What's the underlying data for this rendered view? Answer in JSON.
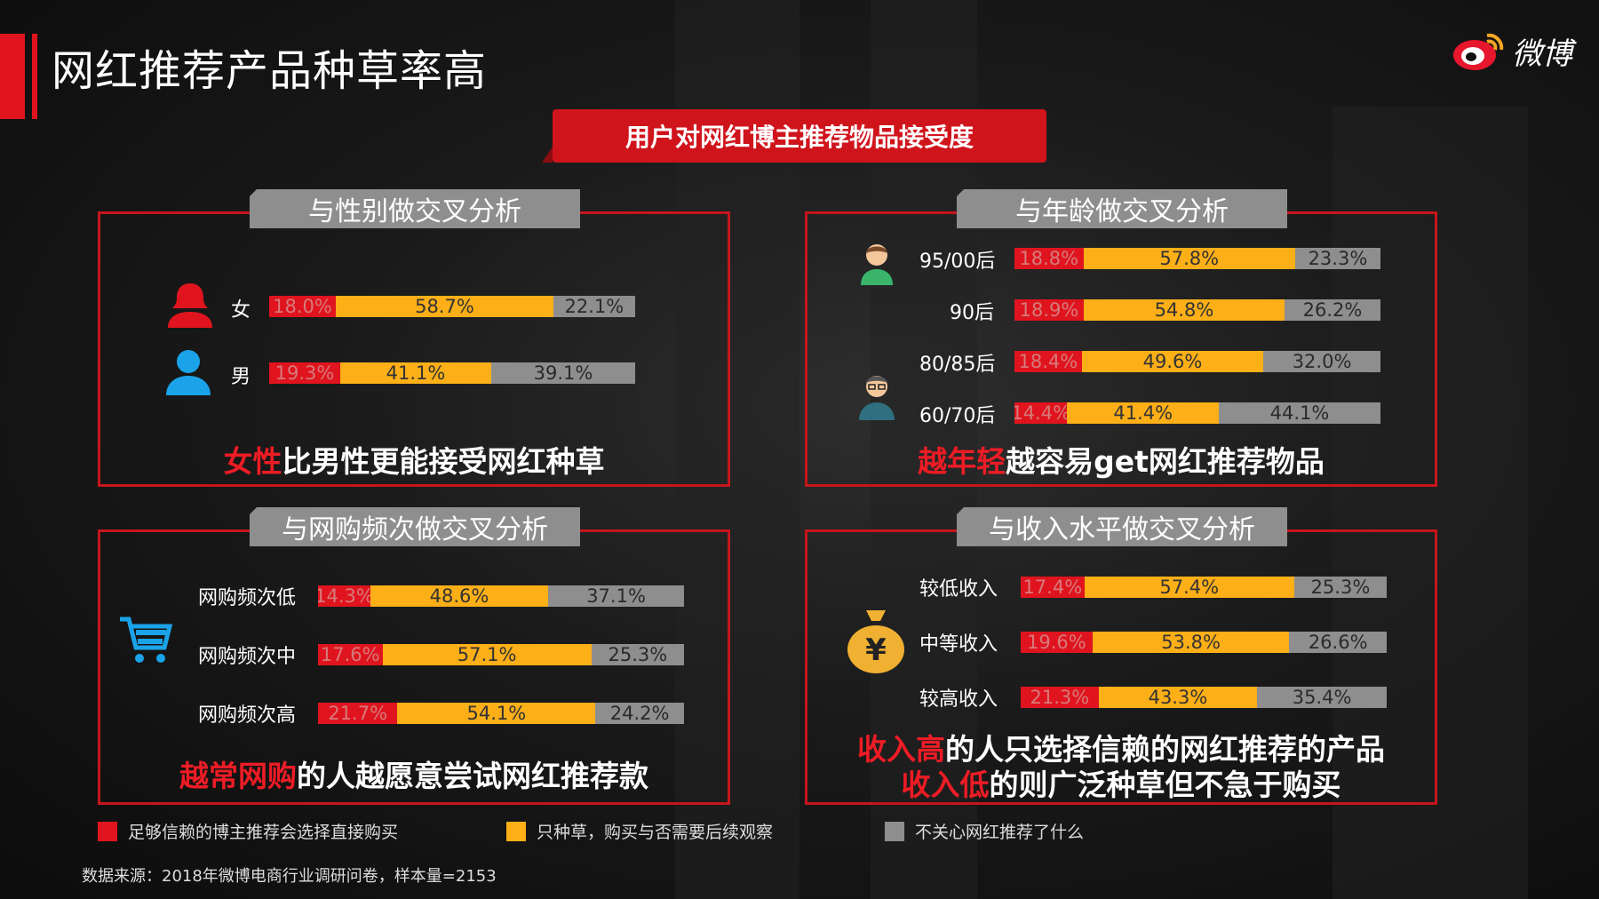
{
  "title": "网红推荐产品种草率高",
  "logo_text": "微博",
  "banner": "用户对网红博主推荐物品接受度",
  "colors": {
    "accept": "#e0141e",
    "seed": "#fcaf17",
    "ignore": "#8e8e8e",
    "frame": "#c5161c"
  },
  "panels": {
    "gender": {
      "tab": "与性别做交叉分析",
      "conclusion_hl": "女性",
      "conclusion_rest": "比男性更能接受网红种草"
    },
    "age": {
      "tab": "与年龄做交叉分析",
      "conclusion_hl": "越年轻",
      "conclusion_rest": "越容易get网红推荐物品"
    },
    "freq": {
      "tab": "与网购频次做交叉分析",
      "conclusion_hl": "越常网购",
      "conclusion_rest": "的人越愿意尝试网红推荐款"
    },
    "income": {
      "tab": "与收入水平做交叉分析",
      "conclusion1_hl": "收入高",
      "conclusion1_rest": "的人只选择信赖的网红推荐的产品",
      "conclusion2_hl": "收入低",
      "conclusion2_rest": "的则广泛种草但不急于购买"
    }
  },
  "legend": {
    "accept": "足够信赖的博主推荐会选择直接购买",
    "seed": "只种草，购买与否需要后续观察",
    "ignore": "不关心网红推荐了什么"
  },
  "source": "数据来源：2018年微博电商行业调研问卷，样本量=2153",
  "chart_data": [
    {
      "type": "bar",
      "stacked": true,
      "orientation": "horizontal",
      "title": "与性别做交叉分析",
      "categories": [
        "女",
        "男"
      ],
      "series": [
        {
          "name": "足够信赖的博主推荐会选择直接购买",
          "values": [
            18.0,
            19.3
          ],
          "labels": [
            "18.0%",
            "19.3%"
          ]
        },
        {
          "name": "只种草，购买与否需要后续观察",
          "values": [
            58.7,
            41.1
          ],
          "labels": [
            "58.7%",
            "41.1%"
          ]
        },
        {
          "name": "不关心网红推荐了什么",
          "values": [
            22.1,
            39.1
          ],
          "labels": [
            "22.1%",
            "39.1%"
          ]
        }
      ]
    },
    {
      "type": "bar",
      "stacked": true,
      "orientation": "horizontal",
      "title": "与年龄做交叉分析",
      "categories": [
        "95/00后",
        "90后",
        "80/85后",
        "60/70后"
      ],
      "series": [
        {
          "name": "足够信赖的博主推荐会选择直接购买",
          "values": [
            18.8,
            18.9,
            18.4,
            14.4
          ],
          "labels": [
            "18.8%",
            "18.9%",
            "18.4%",
            "14.4%"
          ]
        },
        {
          "name": "只种草，购买与否需要后续观察",
          "values": [
            57.8,
            54.8,
            49.6,
            41.4
          ],
          "labels": [
            "57.8%",
            "54.8%",
            "49.6%",
            "41.4%"
          ]
        },
        {
          "name": "不关心网红推荐了什么",
          "values": [
            23.3,
            26.2,
            32.0,
            44.1
          ],
          "labels": [
            "23.3%",
            "26.2%",
            "32.0%",
            "44.1%"
          ]
        }
      ]
    },
    {
      "type": "bar",
      "stacked": true,
      "orientation": "horizontal",
      "title": "与网购频次做交叉分析",
      "categories": [
        "网购频次低",
        "网购频次中",
        "网购频次高"
      ],
      "series": [
        {
          "name": "足够信赖的博主推荐会选择直接购买",
          "values": [
            14.3,
            17.6,
            21.7
          ],
          "labels": [
            "14.3%",
            "17.6%",
            "21.7%"
          ]
        },
        {
          "name": "只种草，购买与否需要后续观察",
          "values": [
            48.6,
            57.1,
            54.1
          ],
          "labels": [
            "48.6%",
            "57.1%",
            "54.1%"
          ]
        },
        {
          "name": "不关心网红推荐了什么",
          "values": [
            37.1,
            25.3,
            24.2
          ],
          "labels": [
            "37.1%",
            "25.3%",
            "24.2%"
          ]
        }
      ]
    },
    {
      "type": "bar",
      "stacked": true,
      "orientation": "horizontal",
      "title": "与收入水平做交叉分析",
      "categories": [
        "较低收入",
        "中等收入",
        "较高收入"
      ],
      "series": [
        {
          "name": "足够信赖的博主推荐会选择直接购买",
          "values": [
            17.4,
            19.6,
            21.3
          ],
          "labels": [
            "17.4%",
            "19.6%",
            "21.3%"
          ]
        },
        {
          "name": "只种草，购买与否需要后续观察",
          "values": [
            57.4,
            53.8,
            43.3
          ],
          "labels": [
            "57.4%",
            "53.8%",
            "43.3%"
          ]
        },
        {
          "name": "不关心网红推荐了什么",
          "values": [
            25.3,
            26.6,
            35.4
          ],
          "labels": [
            "25.3%",
            "26.6%",
            "35.4%"
          ]
        }
      ]
    }
  ]
}
